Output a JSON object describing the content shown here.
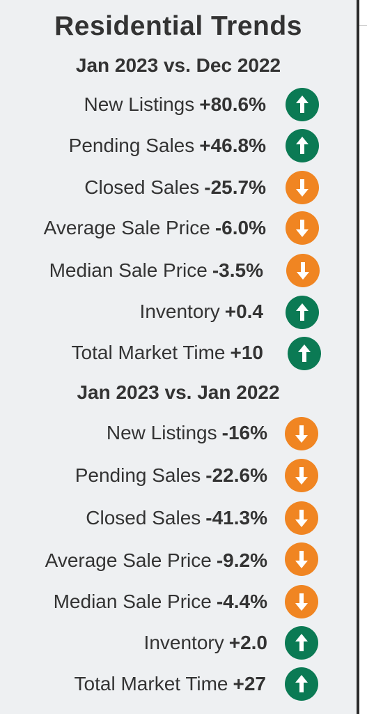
{
  "title": "Residential Trends",
  "colors": {
    "up": "#0b7a54",
    "down": "#f08522"
  },
  "sections": [
    {
      "heading": "Jan 2023 vs. Dec 2022",
      "rows": [
        {
          "label": "New Listings",
          "value": "+80.6%",
          "direction": "up"
        },
        {
          "label": "Pending Sales",
          "value": "+46.8%",
          "direction": "up"
        },
        {
          "label": "Closed Sales",
          "value": "-25.7%",
          "direction": "down"
        },
        {
          "label": "Average Sale Price",
          "value": "-6.0%",
          "direction": "down"
        },
        {
          "label": "Median Sale Price",
          "value": "-3.5%",
          "direction": "down"
        },
        {
          "label": "Inventory",
          "value": "+0.4",
          "direction": "up"
        },
        {
          "label": "Total Market Time",
          "value": "+10",
          "direction": "up"
        }
      ]
    },
    {
      "heading": "Jan 2023 vs. Jan 2022",
      "rows": [
        {
          "label": "New Listings",
          "value": "-16%",
          "direction": "down"
        },
        {
          "label": "Pending Sales",
          "value": "-22.6%",
          "direction": "down"
        },
        {
          "label": "Closed Sales",
          "value": "-41.3%",
          "direction": "down"
        },
        {
          "label": "Average Sale Price",
          "value": "-9.2%",
          "direction": "down"
        },
        {
          "label": "Median Sale Price",
          "value": "-4.4%",
          "direction": "down"
        },
        {
          "label": "Inventory",
          "value": "+2.0",
          "direction": "up"
        },
        {
          "label": "Total Market Time",
          "value": "+27",
          "direction": "up"
        }
      ]
    }
  ]
}
